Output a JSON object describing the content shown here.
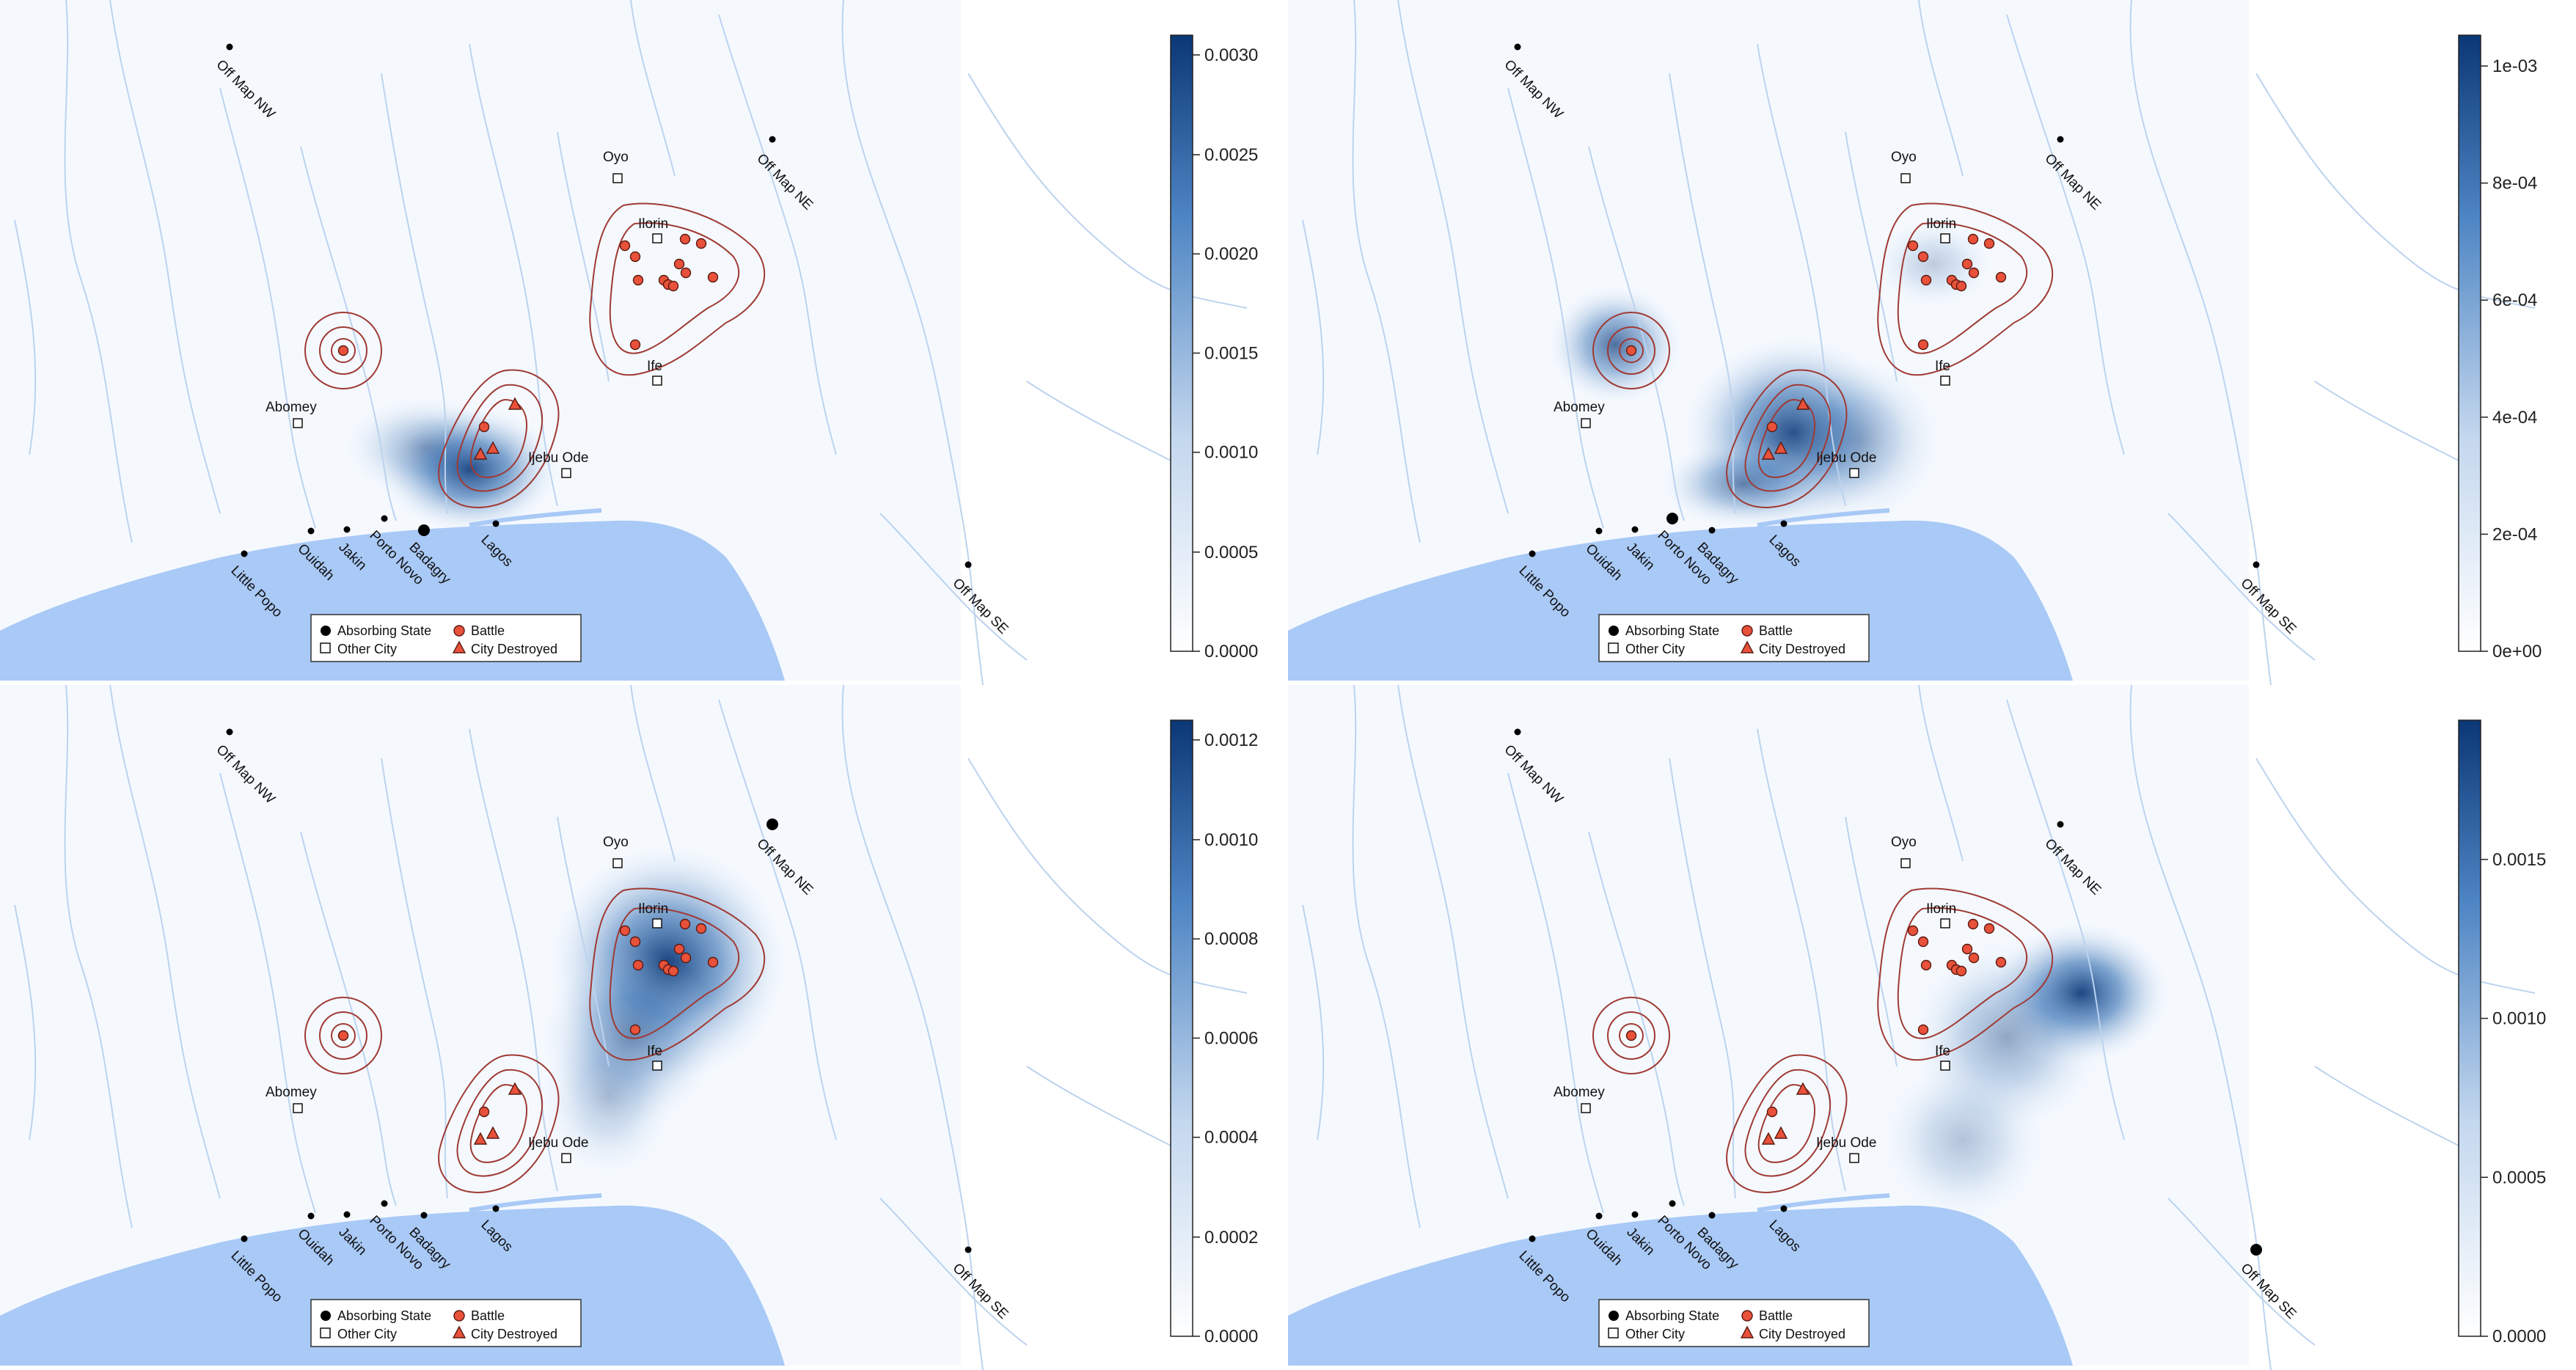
{
  "colors": {
    "land": "#f5f9fe",
    "sea": "#a9c9f6",
    "river": "#bcd3ee",
    "contour": "#a03a34",
    "battle_fill": "#e8513a",
    "density_high": "#0b3776"
  },
  "cities": [
    {
      "label": "Oyo",
      "marker": "other-city"
    },
    {
      "label": "Ilorin",
      "marker": "other-city"
    },
    {
      "label": "Ife",
      "marker": "other-city"
    },
    {
      "label": "Abomey",
      "marker": "other-city"
    },
    {
      "label": "Ijebu Ode",
      "marker": "other-city"
    },
    {
      "label": "Little Popo",
      "marker": "absorbing-state"
    },
    {
      "label": "Ouidah",
      "marker": "absorbing-state"
    },
    {
      "label": "Jakin",
      "marker": "absorbing-state"
    },
    {
      "label": "Porto Novo",
      "marker": "absorbing-state"
    },
    {
      "label": "Badagry",
      "marker": "absorbing-state"
    },
    {
      "label": "Lagos",
      "marker": "absorbing-state"
    },
    {
      "label": "Off Map NW",
      "marker": "absorbing-state"
    },
    {
      "label": "Off Map NE",
      "marker": "absorbing-state"
    },
    {
      "label": "Off Map SE",
      "marker": "absorbing-state"
    }
  ],
  "legend": {
    "absorbing_state": "Absorbing State",
    "other_city": "Other City",
    "battle": "Battle",
    "city_destroyed": "City Destroyed"
  },
  "panels": [
    {
      "colorbar_ticks": [
        "0.0000",
        "0.0005",
        "0.0010",
        "0.0015",
        "0.0020",
        "0.0025",
        "0.0030"
      ],
      "colorbar_max_fraction_of_top": 0.0031,
      "highlighted_absorbing_state": "Badagry",
      "density_peak_near": "Badagry"
    },
    {
      "colorbar_ticks": [
        "0e+00",
        "2e-04",
        "4e-04",
        "6e-04",
        "8e-04",
        "1e-03"
      ],
      "highlighted_absorbing_state": "Porto Novo",
      "density_peak_near": "Porto Novo"
    },
    {
      "colorbar_ticks": [
        "0.0000",
        "0.0002",
        "0.0004",
        "0.0006",
        "0.0008",
        "0.0010",
        "0.0012"
      ],
      "highlighted_absorbing_state": "Off Map NE",
      "density_peak_near": "Ilorin"
    },
    {
      "colorbar_ticks": [
        "0.0000",
        "0.0005",
        "0.0010",
        "0.0015"
      ],
      "highlighted_absorbing_state": "Off Map SE",
      "density_peak_near": "Off Map SE"
    }
  ]
}
